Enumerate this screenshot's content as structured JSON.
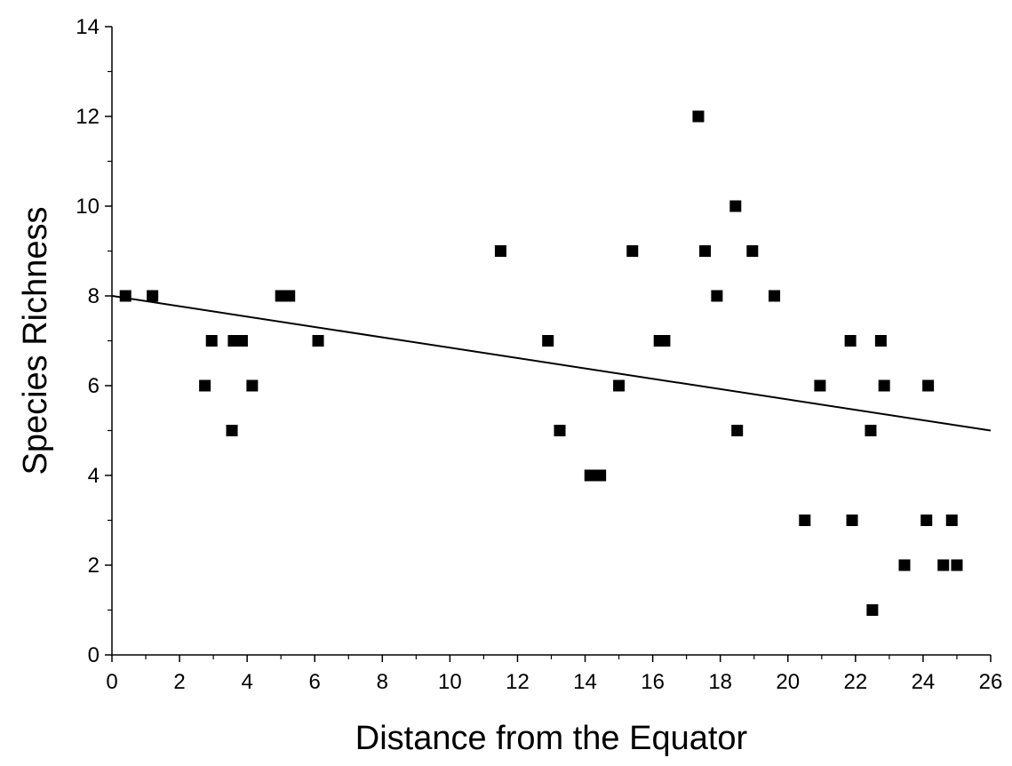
{
  "chart_data": {
    "type": "scatter",
    "title": "",
    "xlabel": "Distance from the Equator",
    "ylabel": "Species Richness",
    "xlim": [
      0,
      26
    ],
    "ylim": [
      0,
      14
    ],
    "xticks": [
      "0",
      "2",
      "4",
      "6",
      "8",
      "10",
      "12",
      "14",
      "16",
      "18",
      "20",
      "22",
      "24",
      "26"
    ],
    "yticks": [
      "0",
      "2",
      "4",
      "6",
      "8",
      "10",
      "12",
      "14"
    ],
    "grid": false,
    "legend": "none",
    "colors": {
      "points": "#000000",
      "line": "#000000",
      "axis": "#000000"
    },
    "series": [
      {
        "type": "scatter",
        "marker": "square",
        "points": [
          [
            0.4,
            8
          ],
          [
            1.2,
            8
          ],
          [
            2.75,
            6
          ],
          [
            2.95,
            7
          ],
          [
            3.55,
            5
          ],
          [
            3.6,
            7
          ],
          [
            3.85,
            7
          ],
          [
            4.15,
            6
          ],
          [
            5.0,
            8
          ],
          [
            5.25,
            8
          ],
          [
            6.1,
            7
          ],
          [
            11.5,
            9
          ],
          [
            12.9,
            7
          ],
          [
            13.25,
            5
          ],
          [
            14.15,
            4
          ],
          [
            14.45,
            4
          ],
          [
            15.0,
            6
          ],
          [
            15.4,
            9
          ],
          [
            16.2,
            7
          ],
          [
            16.35,
            7
          ],
          [
            17.35,
            12
          ],
          [
            17.55,
            9
          ],
          [
            17.9,
            8
          ],
          [
            18.45,
            10
          ],
          [
            18.5,
            5
          ],
          [
            18.95,
            9
          ],
          [
            19.6,
            8
          ],
          [
            20.5,
            3
          ],
          [
            20.95,
            6
          ],
          [
            21.85,
            7
          ],
          [
            21.9,
            3
          ],
          [
            22.45,
            5
          ],
          [
            22.5,
            1
          ],
          [
            22.75,
            7
          ],
          [
            22.85,
            6
          ],
          [
            23.45,
            2
          ],
          [
            24.1,
            3
          ],
          [
            24.15,
            6
          ],
          [
            24.6,
            2
          ],
          [
            24.85,
            3
          ],
          [
            25.0,
            2
          ]
        ]
      },
      {
        "type": "line",
        "fit": "linear",
        "x": [
          0,
          26
        ],
        "y": [
          8.0,
          5.0
        ]
      }
    ]
  }
}
